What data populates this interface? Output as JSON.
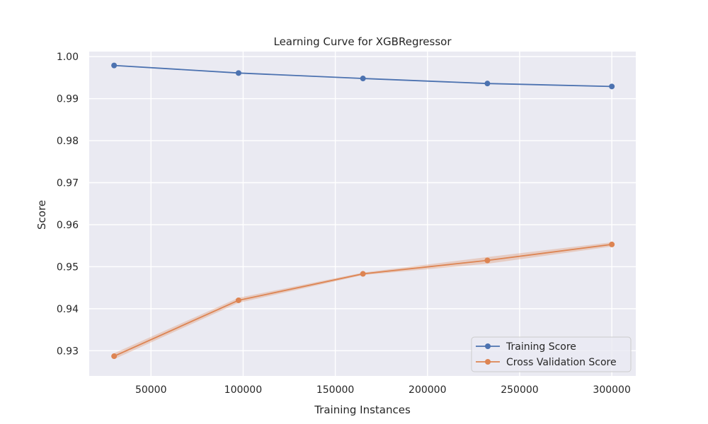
{
  "chart_data": {
    "type": "line",
    "title": "Learning Curve for XGBRegressor",
    "xlabel": "Training Instances",
    "ylabel": "Score",
    "xlim": [
      16500,
      313000
    ],
    "ylim": [
      0.924,
      1.0012
    ],
    "x_ticks": [
      50000,
      100000,
      150000,
      200000,
      250000,
      300000
    ],
    "x_tick_labels": [
      "50000",
      "100000",
      "150000",
      "200000",
      "250000",
      "300000"
    ],
    "y_ticks": [
      0.93,
      0.94,
      0.95,
      0.96,
      0.97,
      0.98,
      0.99,
      1.0
    ],
    "y_tick_labels": [
      "0.93",
      "0.94",
      "0.95",
      "0.96",
      "0.97",
      "0.98",
      "0.99",
      "1.00"
    ],
    "grid": true,
    "legend_position": "lower-right",
    "background_color": "#eaeaf2",
    "series": [
      {
        "name": "Training Score",
        "color": "#4c72b0",
        "x": [
          30000,
          97500,
          165000,
          232500,
          300000
        ],
        "y": [
          0.9979,
          0.9961,
          0.9948,
          0.9936,
          0.9929
        ],
        "band": [
          0.0001,
          0.0001,
          0.0001,
          0.0001,
          0.0001
        ]
      },
      {
        "name": "Cross Validation Score",
        "color": "#dd8452",
        "x": [
          30000,
          97500,
          165000,
          232500,
          300000
        ],
        "y": [
          0.9287,
          0.942,
          0.9483,
          0.9515,
          0.9553
        ],
        "band": [
          0.0007,
          0.0006,
          0.0003,
          0.0008,
          0.0005
        ]
      }
    ]
  }
}
